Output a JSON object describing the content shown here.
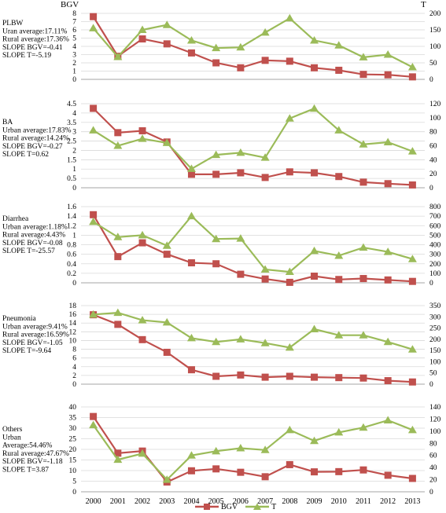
{
  "header": {
    "left_axis_title": "BGV",
    "right_axis_title": "T"
  },
  "legend": [
    {
      "name": "BGV",
      "color": "#c0504d",
      "marker": "square"
    },
    {
      "name": "T",
      "color": "#9bbb59",
      "marker": "triangle"
    }
  ],
  "chart_data": [
    {
      "type": "line",
      "panel_label": [
        "PLBW",
        "Uran average:17.11%",
        "Rural average:17.36%",
        "SLOPE BGV=-0.41",
        "SLOPE T=-5.19"
      ],
      "x": [
        "2000",
        "2001",
        "2002",
        "2003",
        "2004",
        "2005",
        "2006",
        "2007",
        "2008",
        "2009",
        "2010",
        "2011",
        "2012",
        "2013"
      ],
      "left_ticks": [
        0,
        1,
        2,
        3,
        4,
        5,
        6,
        7,
        8
      ],
      "right_ticks": [
        0,
        50,
        100,
        150,
        200
      ],
      "ylim_left": [
        0,
        8
      ],
      "ylim_right": [
        0,
        200
      ],
      "series": [
        {
          "name": "BGV",
          "axis": "left",
          "values": [
            7.6,
            2.8,
            4.9,
            4.3,
            3.2,
            2.0,
            1.4,
            2.3,
            2.2,
            1.4,
            1.1,
            0.6,
            0.55,
            0.3
          ]
        },
        {
          "name": "T",
          "axis": "right",
          "values": [
            155,
            68,
            150,
            165,
            118,
            95,
            97,
            142,
            185,
            118,
            103,
            67,
            75,
            37
          ]
        }
      ]
    },
    {
      "type": "line",
      "panel_label": [
        "BA",
        "Urban average:17.83%",
        "Rural average:14.24%",
        "SLOPE BGV=-0.27",
        "SLOPE T=0.62"
      ],
      "x": [
        "2000",
        "2001",
        "2002",
        "2003",
        "2004",
        "2005",
        "2006",
        "2007",
        "2008",
        "2009",
        "2010",
        "2011",
        "2012",
        "2013"
      ],
      "left_ticks": [
        0,
        0.5,
        1,
        1.5,
        2,
        2.5,
        3,
        3.5,
        4,
        4.5
      ],
      "right_ticks": [
        0,
        20,
        40,
        60,
        80,
        100,
        120
      ],
      "ylim_left": [
        0,
        4.5
      ],
      "ylim_right": [
        0,
        120
      ],
      "series": [
        {
          "name": "BGV",
          "axis": "left",
          "values": [
            4.25,
            2.95,
            3.05,
            2.45,
            0.72,
            0.72,
            0.8,
            0.55,
            0.85,
            0.8,
            0.6,
            0.3,
            0.22,
            0.15
          ]
        },
        {
          "name": "T",
          "axis": "right",
          "values": [
            82,
            60,
            70,
            64,
            27,
            47,
            50,
            43,
            99,
            113,
            82,
            62,
            65,
            52
          ]
        }
      ]
    },
    {
      "type": "line",
      "panel_label": [
        "Diarrhea",
        "Urban average:1.18%",
        "Rural average:4.43%",
        "SLOPE BGV=-0.08",
        "SLOPE T=-25.57"
      ],
      "x": [
        "2000",
        "2001",
        "2002",
        "2003",
        "2004",
        "2005",
        "2006",
        "2007",
        "2008",
        "2009",
        "2010",
        "2011",
        "2012",
        "2013"
      ],
      "left_ticks": [
        0,
        0.2,
        0.4,
        0.6,
        0.8,
        1,
        1.2,
        1.4,
        1.6
      ],
      "right_ticks": [
        0,
        100,
        200,
        300,
        400,
        500,
        600,
        700,
        800
      ],
      "ylim_left": [
        0,
        1.6
      ],
      "ylim_right": [
        0,
        800
      ],
      "series": [
        {
          "name": "BGV",
          "axis": "left",
          "values": [
            1.43,
            0.55,
            0.84,
            0.6,
            0.42,
            0.4,
            0.18,
            0.08,
            0.01,
            0.14,
            0.07,
            0.09,
            0.06,
            0.03
          ]
        },
        {
          "name": "T",
          "axis": "right",
          "values": [
            640,
            480,
            500,
            390,
            700,
            460,
            465,
            140,
            115,
            335,
            285,
            370,
            325,
            250
          ]
        }
      ]
    },
    {
      "type": "line",
      "panel_label": [
        "Pneumonia",
        "Urban average:9.41%",
        "Rural average:16.59%",
        "SLOPE BGV=-1.05",
        "SLOPE T=-9.64"
      ],
      "x": [
        "2000",
        "2001",
        "2002",
        "2003",
        "2004",
        "2005",
        "2006",
        "2007",
        "2008",
        "2009",
        "2010",
        "2011",
        "2012",
        "2013"
      ],
      "left_ticks": [
        0,
        2,
        4,
        6,
        8,
        10,
        12,
        14,
        16,
        18
      ],
      "right_ticks": [
        0,
        50,
        100,
        150,
        200,
        250,
        300,
        350
      ],
      "ylim_left": [
        0,
        18
      ],
      "ylim_right": [
        0,
        350
      ],
      "series": [
        {
          "name": "BGV",
          "axis": "left",
          "values": [
            15.9,
            13.7,
            10.2,
            7.3,
            3.3,
            1.8,
            2.1,
            1.6,
            1.8,
            1.6,
            1.5,
            1.4,
            0.8,
            0.5
          ]
        },
        {
          "name": "T",
          "axis": "right",
          "values": [
            310,
            318,
            285,
            275,
            205,
            188,
            200,
            183,
            163,
            245,
            218,
            218,
            188,
            155
          ]
        }
      ]
    },
    {
      "type": "line",
      "panel_label": [
        "Others",
        "Urban",
        "Average:54.46%",
        "Rural average:47.67%",
        "SLOPE BGV=-1.18",
        "SLOPE T=3.87"
      ],
      "x": [
        "2000",
        "2001",
        "2002",
        "2003",
        "2004",
        "2005",
        "2006",
        "2007",
        "2008",
        "2009",
        "2010",
        "2011",
        "2012",
        "2013"
      ],
      "left_ticks": [
        0,
        5,
        10,
        15,
        20,
        25,
        30,
        35,
        40
      ],
      "right_ticks": [
        0,
        20,
        40,
        60,
        80,
        100,
        120,
        140
      ],
      "ylim_left": [
        0,
        40
      ],
      "ylim_right": [
        0,
        140
      ],
      "series": [
        {
          "name": "BGV",
          "axis": "left",
          "values": [
            35.5,
            18.2,
            19.2,
            4.6,
            9.9,
            10.8,
            9.2,
            7.1,
            12.8,
            9.4,
            9.5,
            10.3,
            7.8,
            6.3
          ]
        },
        {
          "name": "T",
          "axis": "right",
          "values": [
            110,
            53,
            63,
            20,
            60,
            67,
            72,
            69,
            102,
            84,
            98,
            106,
            118,
            102
          ]
        }
      ]
    }
  ]
}
